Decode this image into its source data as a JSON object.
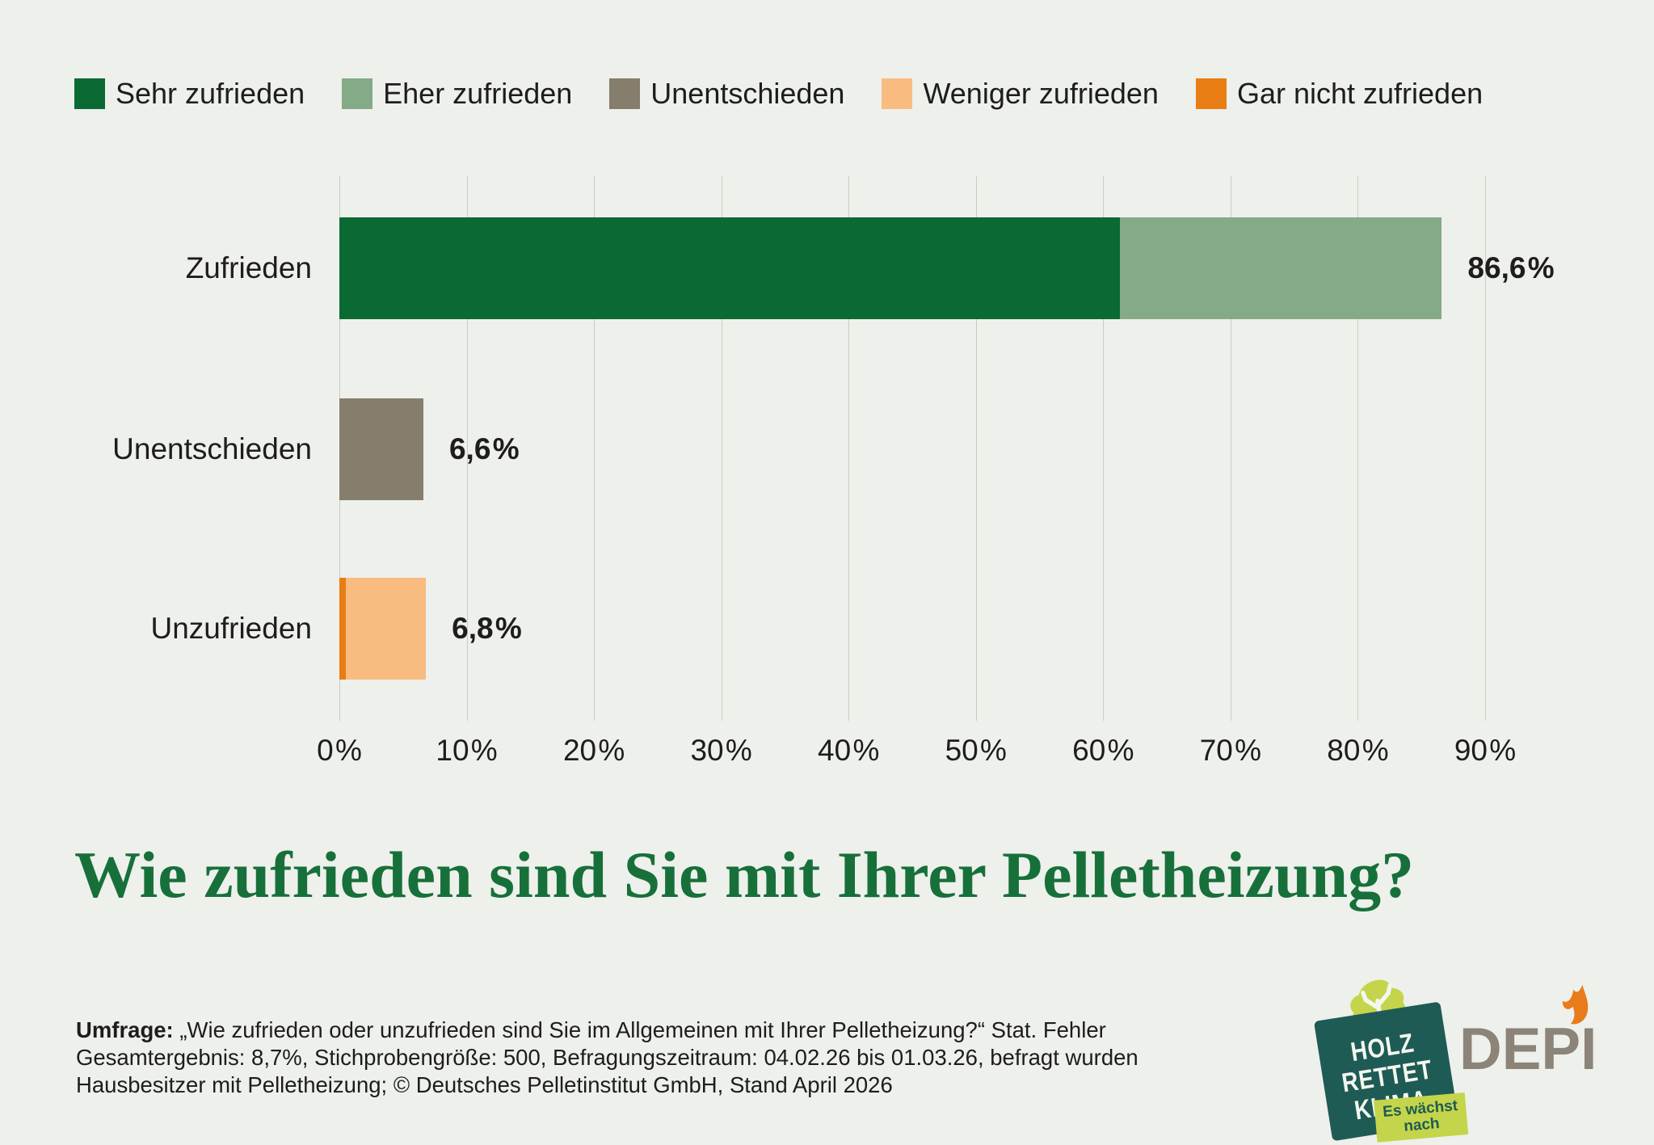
{
  "page": {
    "background": "#eef0eb",
    "text_color": "#1d1d1b",
    "grid_color": "#c9cbc5"
  },
  "legend": {
    "items": [
      {
        "label": "Sehr zufrieden",
        "color": "#0b6a33"
      },
      {
        "label": "Eher zufrieden",
        "color": "#85aa88"
      },
      {
        "label": "Unentschieden",
        "color": "#857e6d"
      },
      {
        "label": "Weniger zufrieden",
        "color": "#f8bc81"
      },
      {
        "label": "Gar nicht zufrieden",
        "color": "#e87d14"
      }
    ]
  },
  "chart_data": {
    "type": "bar",
    "orientation": "horizontal",
    "stacked": true,
    "title": "Wie zufrieden sind Sie mit Ihrer Pelletheizung?",
    "categories": [
      "Zufrieden",
      "Unentschieden",
      "Unzufrieden"
    ],
    "rows": [
      {
        "category": "Zufrieden",
        "total": 86.6,
        "total_label": "86,6 %",
        "segments": [
          {
            "series": "Sehr zufrieden",
            "value": 61.3,
            "color": "#0b6a33"
          },
          {
            "series": "Eher zufrieden",
            "value": 25.3,
            "color": "#85aa88"
          }
        ]
      },
      {
        "category": "Unentschieden",
        "total": 6.6,
        "total_label": "6,6 %",
        "segments": [
          {
            "series": "Unentschieden",
            "value": 6.6,
            "color": "#857e6d"
          }
        ]
      },
      {
        "category": "Unzufrieden",
        "total": 6.8,
        "total_label": "6,8 %",
        "segments": [
          {
            "series": "Gar nicht zufrieden",
            "value": 0.5,
            "color": "#e87d14"
          },
          {
            "series": "Weniger zufrieden",
            "value": 6.3,
            "color": "#f8bc81"
          }
        ]
      }
    ],
    "xaxis": {
      "min": 0,
      "max": 90,
      "tick_step": 10,
      "tick_labels": [
        "0 %",
        "10 %",
        "20 %",
        "30 %",
        "40 %",
        "50 %",
        "60 %",
        "70 %",
        "80 %",
        "90 %"
      ],
      "grid": true
    },
    "legend_position": "top"
  },
  "title": {
    "text": "Wie zufrieden sind Sie mit Ihrer Pelletheizung?",
    "color": "#17703a"
  },
  "footer": {
    "label": "Umfrage:",
    "line1": "„Wie zufrieden oder unzufrieden sind Sie im Allgemeinen mit Ihrer Pelletheizung?“ Stat. Fehler",
    "line2": "Gesamtergebnis: 8,7%, Stichprobengröße: 500, Befragungszeitraum: 04.02.26 bis 01.03.26, befragt wurden",
    "line3": "Hausbesitzer mit Pelletheizung; © Deutsches Pelletinstitut GmbH, Stand April 2026"
  },
  "logos": {
    "holz_rettet_klima": {
      "lines": [
        "HOLZ",
        "RETTET",
        "KLIMA"
      ],
      "tag_line1": "Es wächst",
      "tag_line2": "nach",
      "square_color": "#1e5b54",
      "accent_color": "#c4d54b"
    },
    "depi": {
      "text": "DEPI",
      "color": "#8c8478",
      "flame_color": "#e87b1a"
    }
  }
}
